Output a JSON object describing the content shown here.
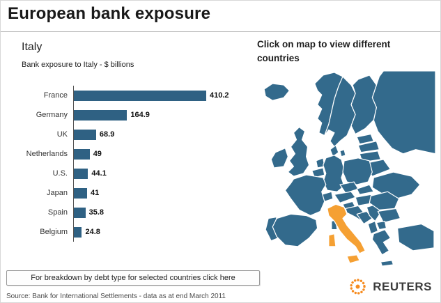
{
  "header": {
    "title": "European bank exposure"
  },
  "chart_data": {
    "type": "bar",
    "orientation": "horizontal",
    "title": "Italy",
    "subtitle": "Bank exposure to Italy - $ billions",
    "categories": [
      "France",
      "Germany",
      "UK",
      "Netherlands",
      "U.S.",
      "Japan",
      "Spain",
      "Belgium"
    ],
    "values": [
      410.2,
      164.9,
      68.9,
      49,
      44.1,
      41,
      35.8,
      24.8
    ],
    "value_labels": [
      "410.2",
      "164.9",
      "68.9",
      "49",
      "44.1",
      "41",
      "35.8",
      "24.8"
    ],
    "xlim": [
      0,
      450
    ],
    "grid": false,
    "legend": false
  },
  "map_panel": {
    "instruction": "Click on map to view different countries",
    "highlighted_country": "Italy"
  },
  "footer": {
    "breakdown_link": "For breakdown by debt type for selected countries click here",
    "source": "Source: Bank for International Settlements - data as at end March 2011",
    "brand": "REUTERS"
  },
  "colors": {
    "bar": "#2f6183",
    "map_country": "#336a8c",
    "map_highlight": "#f5a033",
    "brand_orange": "#f68b1f"
  }
}
